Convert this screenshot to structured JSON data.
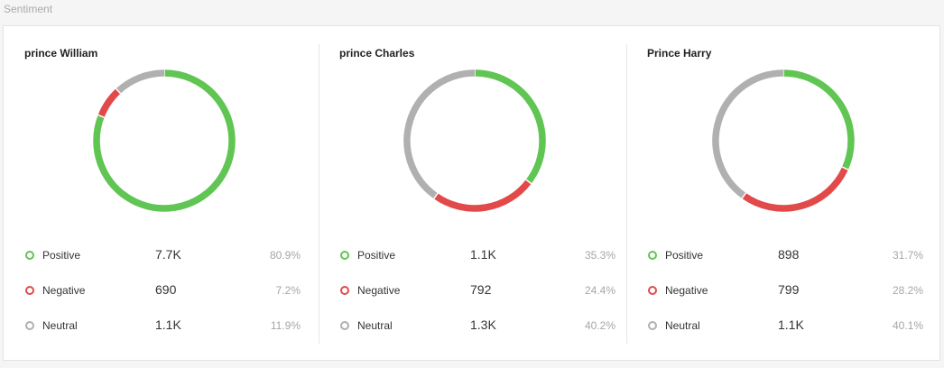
{
  "section_title": "Sentiment",
  "colors": {
    "positive": "#60c552",
    "negative": "#e24a4a",
    "neutral": "#b0b0b0"
  },
  "chart_data": [
    {
      "type": "pie",
      "title": "prince William",
      "categories": [
        "Positive",
        "Negative",
        "Neutral"
      ],
      "values": [
        80.9,
        7.2,
        11.9
      ],
      "counts": [
        "7.7K",
        "690",
        "1.1K"
      ],
      "percents": [
        "80.9%",
        "7.2%",
        "11.9%"
      ],
      "donut": true
    },
    {
      "type": "pie",
      "title": "prince Charles",
      "categories": [
        "Positive",
        "Negative",
        "Neutral"
      ],
      "values": [
        35.3,
        24.4,
        40.2
      ],
      "counts": [
        "1.1K",
        "792",
        "1.3K"
      ],
      "percents": [
        "35.3%",
        "24.4%",
        "40.2%"
      ],
      "donut": true
    },
    {
      "type": "pie",
      "title": "Prince Harry",
      "categories": [
        "Positive",
        "Negative",
        "Neutral"
      ],
      "values": [
        31.7,
        28.2,
        40.1
      ],
      "counts": [
        "898",
        "799",
        "1.1K"
      ],
      "percents": [
        "31.7%",
        "28.2%",
        "40.1%"
      ],
      "donut": true
    }
  ]
}
